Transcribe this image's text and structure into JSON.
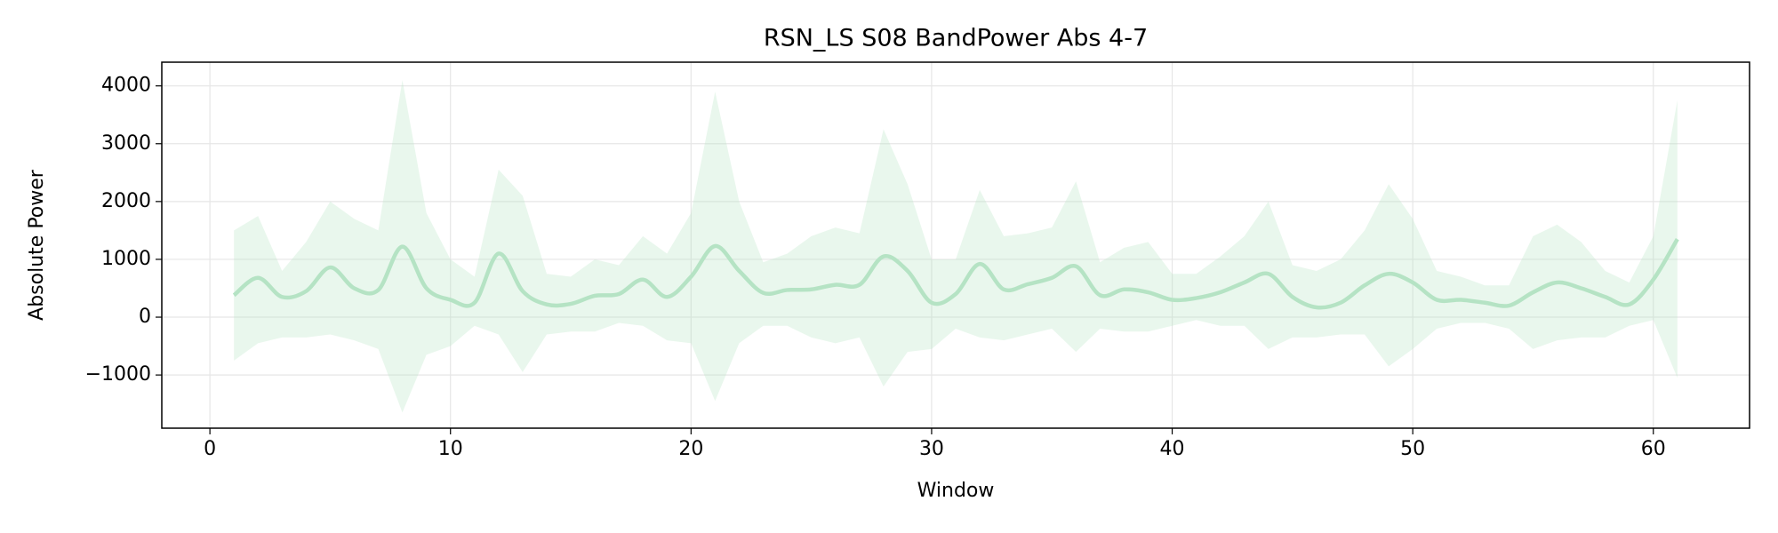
{
  "chart_data": {
    "type": "line",
    "title": "RSN_LS S08 BandPower Abs 4-7",
    "xlabel": "Window",
    "ylabel": "Absolute Power",
    "x": [
      1,
      2,
      3,
      4,
      5,
      6,
      7,
      8,
      9,
      10,
      11,
      12,
      13,
      14,
      15,
      16,
      17,
      18,
      19,
      20,
      21,
      22,
      23,
      24,
      25,
      26,
      27,
      28,
      29,
      30,
      31,
      32,
      33,
      34,
      35,
      36,
      37,
      38,
      39,
      40,
      41,
      42,
      43,
      44,
      45,
      46,
      47,
      48,
      49,
      50,
      51,
      52,
      53,
      54,
      55,
      56,
      57,
      58,
      59,
      60,
      61
    ],
    "series": [
      {
        "color": "#b5e3c4",
        "values": [
          380,
          680,
          350,
          450,
          860,
          500,
          470,
          1220,
          500,
          300,
          250,
          1100,
          450,
          220,
          230,
          370,
          400,
          650,
          350,
          700,
          1230,
          800,
          420,
          470,
          480,
          560,
          560,
          1050,
          800,
          250,
          400,
          920,
          480,
          570,
          680,
          880,
          380,
          480,
          430,
          300,
          330,
          430,
          600,
          750,
          350,
          170,
          250,
          550,
          750,
          600,
          300,
          300,
          250,
          200,
          430,
          600,
          500,
          350,
          220,
          650,
          1350
        ],
        "upper": [
          1500,
          1750,
          800,
          1300,
          2000,
          1700,
          1500,
          4100,
          1800,
          1000,
          700,
          2550,
          2100,
          750,
          700,
          1000,
          900,
          1400,
          1100,
          1800,
          3900,
          2000,
          950,
          1100,
          1400,
          1550,
          1450,
          3250,
          2300,
          1000,
          1000,
          2200,
          1400,
          1450,
          1550,
          2350,
          950,
          1200,
          1300,
          750,
          750,
          1050,
          1400,
          2000,
          900,
          800,
          1000,
          1500,
          2300,
          1700,
          800,
          700,
          550,
          550,
          1400,
          1600,
          1300,
          800,
          600,
          1400,
          3750
        ],
        "lower": [
          -750,
          -450,
          -350,
          -350,
          -300,
          -400,
          -550,
          -1650,
          -650,
          -500,
          -150,
          -300,
          -950,
          -300,
          -250,
          -250,
          -100,
          -150,
          -400,
          -450,
          -1450,
          -450,
          -150,
          -150,
          -350,
          -450,
          -350,
          -1200,
          -600,
          -550,
          -200,
          -350,
          -400,
          -300,
          -200,
          -600,
          -200,
          -250,
          -250,
          -150,
          -50,
          -150,
          -150,
          -550,
          -350,
          -350,
          -300,
          -300,
          -850,
          -550,
          -200,
          -100,
          -100,
          -200,
          -550,
          -400,
          -350,
          -350,
          -150,
          -50,
          -1050
        ]
      }
    ],
    "xlim": [
      -2,
      64
    ],
    "ylim": [
      -1920,
      4410
    ],
    "xticks": [
      0,
      10,
      20,
      30,
      40,
      50,
      60
    ],
    "yticks": [
      {
        "value": -1000,
        "label": "−1000"
      },
      0,
      1000,
      2000,
      3000,
      4000
    ],
    "grid": true
  }
}
